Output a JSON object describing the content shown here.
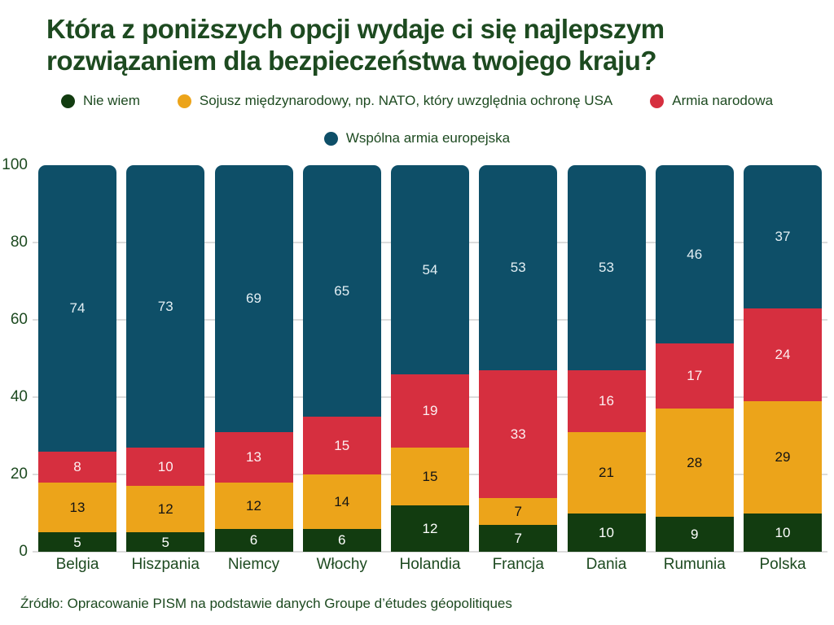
{
  "title": {
    "line1": "Która z poniższych opcji wydaje ci się najlepszym",
    "line2": "rozwiązaniem dla bezpieczeństwa twojego kraju?"
  },
  "legend": [
    {
      "label": "Nie wiem",
      "color": "#123c10"
    },
    {
      "label": "Sojusz międzynarodowy, np. NATO, który uwzględnia ochronę USA",
      "color": "#eca41a"
    },
    {
      "label": "Armia narodowa",
      "color": "#d62f3f"
    },
    {
      "label": "Wspólna armia europejska",
      "color": "#0e4f68"
    }
  ],
  "chart_data": {
    "type": "bar",
    "stacked": true,
    "title": "Która z poniższych opcji wydaje ci się najlepszym rozwiązaniem dla bezpieczeństwa twojego kraju?",
    "categories": [
      "Belgia",
      "Hiszpania",
      "Niemcy",
      "Włochy",
      "Holandia",
      "Francja",
      "Dania",
      "Rumunia",
      "Polska"
    ],
    "series": [
      {
        "name": "Nie wiem",
        "color": "#123c10",
        "label_color": "#ffffff",
        "values": [
          5,
          5,
          6,
          6,
          12,
          7,
          10,
          9,
          10
        ]
      },
      {
        "name": "Sojusz międzynarodowy, np. NATO, który uwzględnia ochronę USA",
        "color": "#eca41a",
        "label_color": "#141414",
        "values": [
          13,
          12,
          12,
          14,
          15,
          7,
          21,
          28,
          29
        ]
      },
      {
        "name": "Armia narodowa",
        "color": "#d62f3f",
        "label_color": "#fdeff1",
        "values": [
          8,
          10,
          13,
          15,
          19,
          33,
          16,
          17,
          24
        ]
      },
      {
        "name": "Wspólna armia europejska",
        "color": "#0e4f68",
        "label_color": "#e3eff4",
        "values": [
          74,
          73,
          69,
          65,
          54,
          53,
          53,
          46,
          37
        ]
      }
    ],
    "ylim": [
      0,
      100
    ],
    "yticks": [
      0,
      20,
      40,
      60,
      80,
      100
    ],
    "grid": true,
    "legend_position": "top",
    "xlabel": "",
    "ylabel": ""
  },
  "source": "Źródło: Opracowanie PISM na podstawie danych Groupe d’études géopolitiques"
}
